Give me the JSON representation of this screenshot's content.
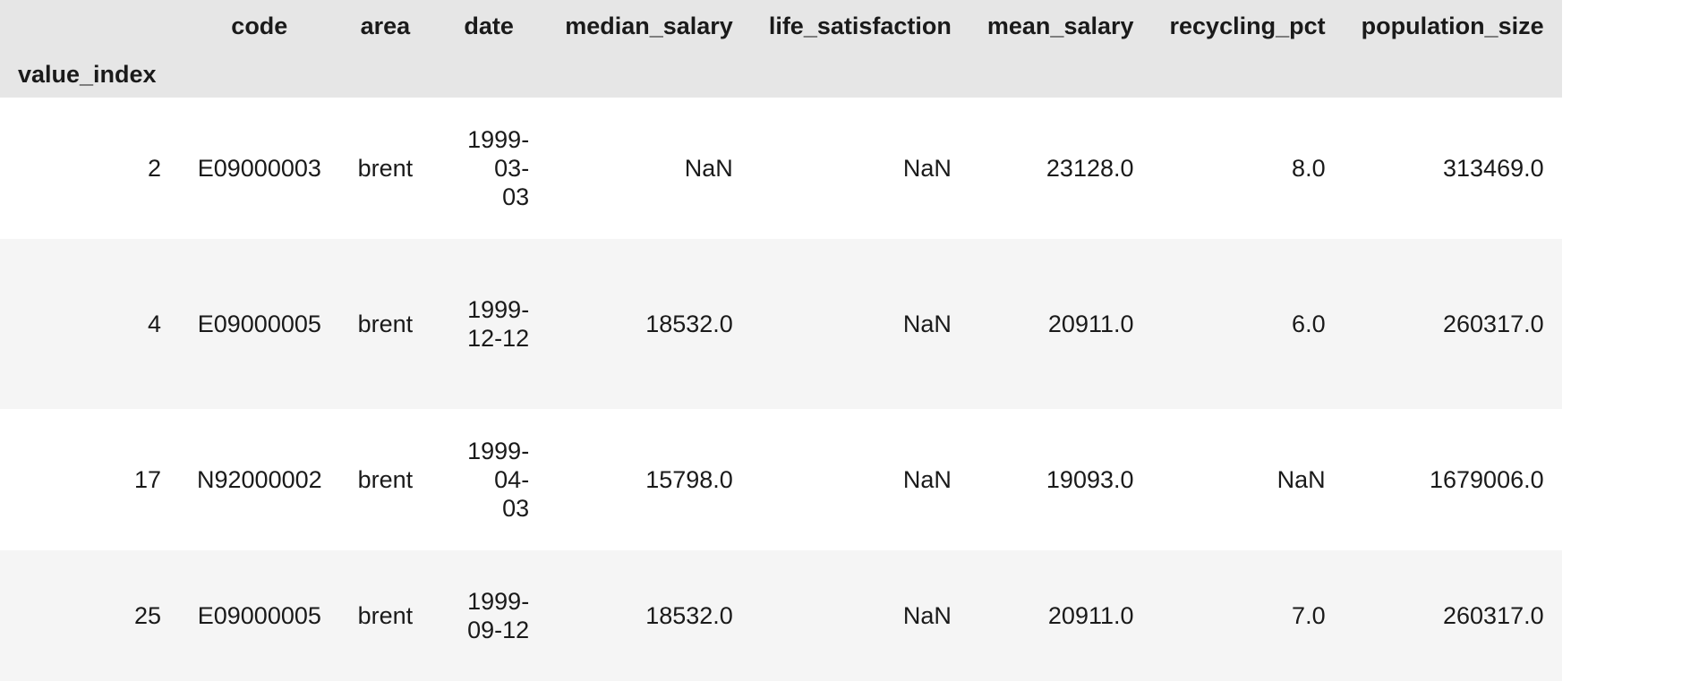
{
  "table": {
    "columns": [
      "code",
      "area",
      "date",
      "median_salary",
      "life_satisfaction",
      "mean_salary",
      "recycling_pct",
      "population_size"
    ],
    "index_name": "value_index",
    "rows": [
      {
        "index": "2",
        "code": "E09000003",
        "area": "brent",
        "date_lines": [
          "1999-",
          "03-",
          "03"
        ],
        "median_salary": "NaN",
        "life_satisfaction": "NaN",
        "mean_salary": "23128.0",
        "recycling_pct": "8.0",
        "population_size": "313469.0"
      },
      {
        "index": "4",
        "code": "E09000005",
        "area": "brent",
        "date_lines": [
          "1999-",
          "12-12"
        ],
        "median_salary": "18532.0",
        "life_satisfaction": "NaN",
        "mean_salary": "20911.0",
        "recycling_pct": "6.0",
        "population_size": "260317.0"
      },
      {
        "index": "17",
        "code": "N92000002",
        "area": "brent",
        "date_lines": [
          "1999-",
          "04-",
          "03"
        ],
        "median_salary": "15798.0",
        "life_satisfaction": "NaN",
        "mean_salary": "19093.0",
        "recycling_pct": "NaN",
        "population_size": "1679006.0"
      },
      {
        "index": "25",
        "code": "E09000005",
        "area": "brent",
        "date_lines": [
          "1999-",
          "09-12"
        ],
        "median_salary": "18532.0",
        "life_satisfaction": "NaN",
        "mean_salary": "20911.0",
        "recycling_pct": "7.0",
        "population_size": "260317.0"
      }
    ]
  }
}
